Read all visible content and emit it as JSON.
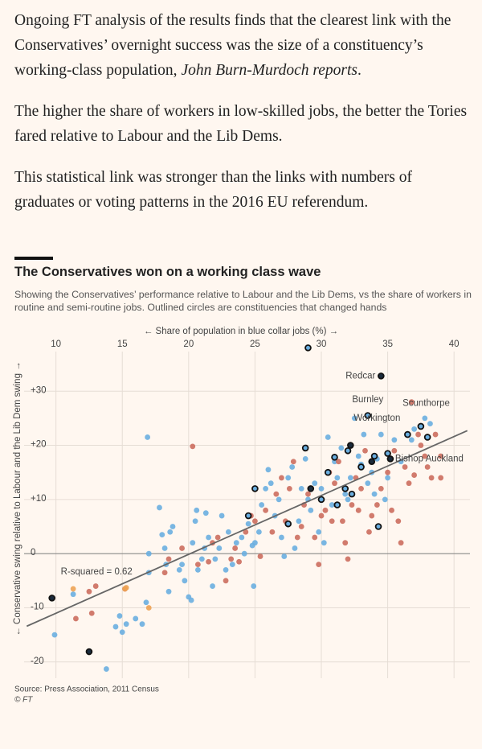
{
  "intro": {
    "text": "Ongoing FT analysis of the results finds that the clearest link with the Conservatives’ overnight success was the size of a constituency’s working-class population, ",
    "byline": "John Burn-Murdoch reports",
    "end": "."
  },
  "paragraphs": [
    "The higher the share of workers in low-skilled jobs, the better the Tories fared relative to Labour and the Lib Dems.",
    "This statistical link was stronger than the links with numbers of graduates or voting patterns in the 2016 EU referendum."
  ],
  "chart_data": {
    "type": "scatter",
    "title": "The Conservatives won on a working class wave",
    "subtitle": "Showing the Conservatives’ performance relative to Labour and the Lib Dems, vs the share of workers in routine and semi-routine jobs. Outlined circles are constituencies that changed hands",
    "x_label": "← Share of population in blue collar jobs (%) →",
    "y_label": "← Conservative swing relative to Labour and the Lib Dem swing →",
    "source": "Source: Press Association, 2011 Census",
    "credit": "© FT",
    "xlim": [
      7.6,
      41.2
    ],
    "ylim": [
      -23,
      38.5
    ],
    "xticks": [
      10,
      15,
      20,
      25,
      30,
      35,
      40
    ],
    "yticks": [
      {
        "value": 30,
        "label": "+30"
      },
      {
        "value": 20,
        "label": "+20"
      },
      {
        "value": 10,
        "label": "+10"
      },
      0,
      -10,
      -20
    ],
    "grid": true,
    "series": [
      {
        "color": "#6aaee0",
        "x": [
          9.9,
          11.3,
          13.8,
          14.5,
          14.8,
          15,
          15.3,
          16,
          16.5,
          16.8,
          17,
          17,
          16.9,
          17.8,
          18,
          18.2,
          18.3,
          18.5,
          18.6,
          18.8,
          19.3,
          19.5,
          19.7,
          20,
          20.2,
          20.3,
          20.5,
          20.6,
          20.7,
          21,
          21.2,
          21.3,
          21.5,
          21.8,
          22,
          22.3,
          22.5,
          22.8,
          23,
          23.3,
          23.6,
          24,
          24.2,
          24.5,
          24.8,
          24.9,
          25,
          25.3,
          25.5,
          25.8,
          26,
          26.2,
          26.5,
          26.8,
          27,
          27.2,
          27.5,
          27.8,
          28,
          28.3,
          28.5,
          28.8,
          29,
          29.2,
          29.5,
          29.8,
          30,
          30.2,
          30.5,
          30.8,
          31,
          31.2,
          31.5,
          31.8,
          32,
          32.2,
          32.5,
          32.8,
          33,
          33.2,
          33.5,
          33.8,
          34,
          34.2,
          34.5,
          34.8,
          35,
          35.5,
          36,
          36.8,
          37,
          37.8,
          38.2
        ],
        "values": [
          -15,
          -7.5,
          -21.3,
          -13.5,
          -11.5,
          -14.5,
          -13,
          -12,
          -13,
          -9,
          -3.5,
          0,
          21.5,
          8.5,
          3.5,
          1,
          -2,
          -7,
          4,
          5,
          -3,
          -2,
          -5,
          -8,
          -8.6,
          2,
          6,
          8,
          -3,
          -1,
          1,
          7.5,
          3,
          -6,
          -1,
          1,
          7,
          -3,
          4,
          -2,
          2,
          3,
          0,
          5.5,
          1.5,
          -6,
          2,
          4,
          9,
          12,
          15.5,
          13,
          7,
          10,
          3,
          -0.5,
          14,
          16,
          1,
          6,
          12,
          17.5,
          10,
          8,
          13,
          4,
          12,
          2,
          21.5,
          9,
          17,
          14,
          19.5,
          11,
          10,
          14,
          25,
          18,
          16.5,
          22,
          13,
          15,
          11,
          17.5,
          22,
          10,
          14,
          21,
          17,
          21,
          23,
          25,
          24
        ]
      },
      {
        "color": "#cc6d5e",
        "x": [
          11.5,
          12.5,
          12.7,
          13,
          15.2,
          18.2,
          18.5,
          19.5,
          20.3,
          20.7,
          21.5,
          21.8,
          22.2,
          22.8,
          23.2,
          23.5,
          23.8,
          24.3,
          24.7,
          25,
          25.4,
          25.8,
          26.3,
          26.6,
          27,
          27.3,
          27.6,
          27.9,
          28.2,
          28.5,
          28.7,
          29,
          29.5,
          29.8,
          30,
          30.3,
          30.6,
          30.8,
          31,
          31.3,
          31.6,
          31.8,
          32,
          32.3,
          32.6,
          32.8,
          33,
          33.3,
          33.6,
          33.8,
          34,
          34.2,
          34.5,
          35,
          35.3,
          35.5,
          35.8,
          36,
          36.3,
          36.6,
          37,
          37.3,
          37.5,
          37.8,
          38,
          38.3,
          38.6,
          39,
          39,
          36.8
        ],
        "values": [
          -12,
          -7,
          -11,
          -6,
          -6.5,
          -3.5,
          -1,
          1,
          19.8,
          -2,
          -1.5,
          2,
          3,
          -5,
          -1,
          1,
          -1.5,
          4,
          7,
          6,
          -0.5,
          8,
          4,
          11,
          14,
          6,
          12,
          17,
          3,
          5,
          9,
          11,
          3,
          -2,
          7,
          8,
          15,
          6,
          13,
          17,
          6,
          2,
          -1,
          9,
          14,
          8,
          12,
          19,
          4,
          7,
          18,
          9,
          12,
          15,
          8,
          19,
          6,
          2,
          16,
          13,
          14.5,
          22,
          20,
          18,
          16,
          14,
          22,
          18,
          14,
          28
        ]
      },
      {
        "color": "#eda254",
        "x": [
          11.3,
          15.2,
          15.3,
          17
        ],
        "values": [
          -6.5,
          -6.5,
          -6.3,
          -10
        ]
      },
      {
        "color": "#6aaee0",
        "outline": "#111111",
        "x": [
          29,
          24.5,
          27.5,
          28.8,
          30,
          30.5,
          31.2,
          31.8,
          32,
          32.3,
          33,
          33.5,
          34,
          35,
          36.5,
          37.5,
          38,
          34.3,
          25,
          31
        ],
        "values": [
          38,
          7,
          5.5,
          19.5,
          10,
          15,
          9,
          12,
          19,
          11,
          16,
          25.5,
          18,
          18.5,
          22,
          23.5,
          21.5,
          5,
          12,
          17.8
        ]
      },
      {
        "color": "#1a2b3c",
        "outline": "#111111",
        "x": [
          9.7,
          12.5,
          34.5,
          29.2,
          32.2,
          33.8,
          35.2
        ],
        "values": [
          -8.2,
          -18.1,
          32.8,
          12,
          20,
          17,
          17.5
        ]
      }
    ],
    "trendline": {
      "x": [
        7.8,
        41
      ],
      "values": [
        -13.4,
        22.7
      ],
      "color": "#666666"
    },
    "annotations": [
      {
        "text": "Redcar",
        "x": 34.5,
        "y": 32.8,
        "position": "left"
      },
      {
        "text": "Burnley",
        "x": 33.5,
        "y": 25.4,
        "position": "above"
      },
      {
        "text": "Scunthorpe",
        "x": 37.9,
        "y": 24.8,
        "position": "above"
      },
      {
        "text": "Workington",
        "x": 34.2,
        "y": 22,
        "position": "above"
      },
      {
        "text": "Bishop Auckland",
        "x": 35.2,
        "y": 17.5,
        "position": "right"
      },
      {
        "text": "R-squared = 0.62",
        "x": 10,
        "y": -3.4,
        "position": "right"
      }
    ]
  }
}
